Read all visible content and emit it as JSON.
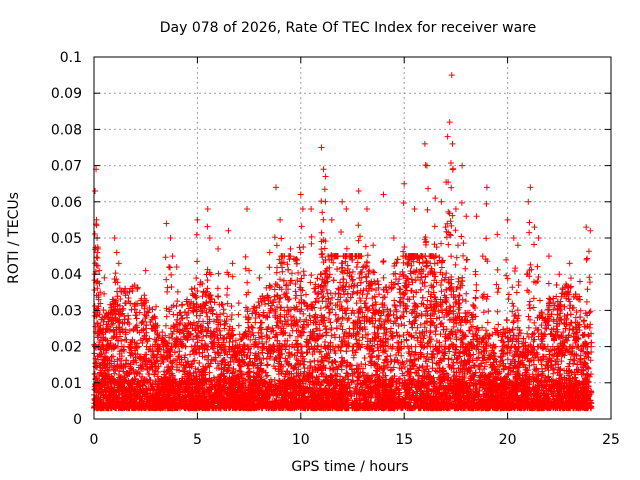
{
  "chart_data": {
    "type": "scatter",
    "title": "Day 078 of 2026, Rate Of TEC Index for receiver ware",
    "xlabel": "GPS time / hours",
    "ylabel": "ROTI / TECUs",
    "xlim": [
      0,
      25
    ],
    "ylim": [
      0,
      0.1
    ],
    "xticks": [
      0,
      5,
      10,
      15,
      20,
      25
    ],
    "xtick_labels": [
      "0",
      "5",
      "10",
      "15",
      "20",
      "25"
    ],
    "yticks": [
      0,
      0.01,
      0.02,
      0.03,
      0.04,
      0.05,
      0.06,
      0.07,
      0.08,
      0.09,
      0.1
    ],
    "ytick_labels": [
      "0",
      "0.01",
      "0.02",
      "0.03",
      "0.04",
      "0.05",
      "0.06",
      "0.07",
      "0.08",
      "0.09",
      "0.1"
    ],
    "grid": true,
    "marker": "+",
    "series": [
      {
        "name": "ROTI",
        "color": "#ff0000",
        "x": [
          0.05,
          0.1,
          0.12,
          0.15,
          0.2,
          0.25,
          0.3,
          0.4,
          0.5,
          0.9,
          1.0,
          1.1,
          1.2,
          1.5,
          2.5,
          3.0,
          3.5,
          3.7,
          3.8,
          4.0,
          4.5,
          5.0,
          5.5,
          5.6,
          6.0,
          6.5,
          6.7,
          7.0,
          7.4,
          7.5,
          8.0,
          8.5,
          8.8,
          9.0,
          9.5,
          10.0,
          10.1,
          10.5,
          11.0,
          11.1,
          11.2,
          11.5,
          12.0,
          12.2,
          12.5,
          12.8,
          13.2,
          13.5,
          14.0,
          14.5,
          14.8,
          15.0,
          15.5,
          16.0,
          16.1,
          16.5,
          16.8,
          17.0,
          17.1,
          17.2,
          17.3,
          17.5,
          17.6,
          17.8,
          18.0,
          18.5,
          18.8,
          19.0,
          19.5,
          20.0,
          20.3,
          20.5,
          21.0,
          21.1,
          21.3,
          21.5,
          22.0,
          22.2,
          22.5,
          23.0,
          23.5,
          23.8,
          24.0,
          0.8,
          2.0,
          4.2,
          6.3,
          8.2,
          9.2,
          10.8,
          12.7,
          14.2,
          16.3,
          18.3,
          20.8,
          22.8,
          1.8,
          3.3,
          5.8,
          7.8,
          9.8,
          11.8,
          13.8,
          15.8,
          17.8,
          19.8,
          21.8,
          23.3,
          0.6,
          2.7,
          4.8,
          6.8,
          8.7,
          10.3,
          12.3,
          14.7,
          16.6,
          18.6,
          20.6,
          22.6,
          23.7,
          1.3,
          3.1,
          5.3,
          7.2,
          9.4,
          11.4,
          13.3,
          15.3,
          17.4,
          19.3,
          21.4,
          23.1,
          2.2,
          4.4,
          6.1,
          8.4,
          10.6,
          12.6,
          14.4,
          16.4,
          18.4,
          20.4,
          22.4
        ],
        "y": [
          0.063,
          0.069,
          0.055,
          0.05,
          0.047,
          0.041,
          0.035,
          0.028,
          0.039,
          0.033,
          0.05,
          0.046,
          0.043,
          0.032,
          0.041,
          0.031,
          0.054,
          0.05,
          0.045,
          0.042,
          0.033,
          0.055,
          0.058,
          0.05,
          0.047,
          0.052,
          0.043,
          0.032,
          0.058,
          0.041,
          0.039,
          0.046,
          0.064,
          0.055,
          0.047,
          0.062,
          0.058,
          0.058,
          0.075,
          0.069,
          0.067,
          0.055,
          0.06,
          0.058,
          0.045,
          0.063,
          0.058,
          0.048,
          0.062,
          0.05,
          0.04,
          0.065,
          0.058,
          0.076,
          0.07,
          0.061,
          0.06,
          0.053,
          0.078,
          0.082,
          0.095,
          0.058,
          0.048,
          0.07,
          0.056,
          0.056,
          0.045,
          0.064,
          0.051,
          0.055,
          0.05,
          0.048,
          0.06,
          0.064,
          0.053,
          0.05,
          0.045,
          0.032,
          0.04,
          0.043,
          0.038,
          0.053,
          0.052,
          0.021,
          0.018,
          0.022,
          0.025,
          0.02,
          0.03,
          0.028,
          0.032,
          0.035,
          0.03,
          0.028,
          0.015,
          0.025,
          0.019,
          0.024,
          0.027,
          0.022,
          0.031,
          0.033,
          0.03,
          0.026,
          0.024,
          0.018,
          0.02,
          0.028,
          0.012,
          0.014,
          0.016,
          0.018,
          0.02,
          0.022,
          0.021,
          0.019,
          0.018,
          0.017,
          0.012,
          0.016,
          0.015,
          0.011,
          0.013,
          0.014,
          0.016,
          0.015,
          0.017,
          0.018,
          0.014,
          0.013,
          0.011,
          0.014,
          0.013,
          0.009,
          0.01,
          0.011,
          0.012,
          0.01,
          0.013,
          0.011,
          0.01,
          0.012,
          0.009,
          0.01
        ]
      }
    ],
    "density_note_values": {
      "baseline_min": 0.003,
      "baseline_dense_max": 0.02,
      "dense_cluster_max": 0.035
    }
  }
}
